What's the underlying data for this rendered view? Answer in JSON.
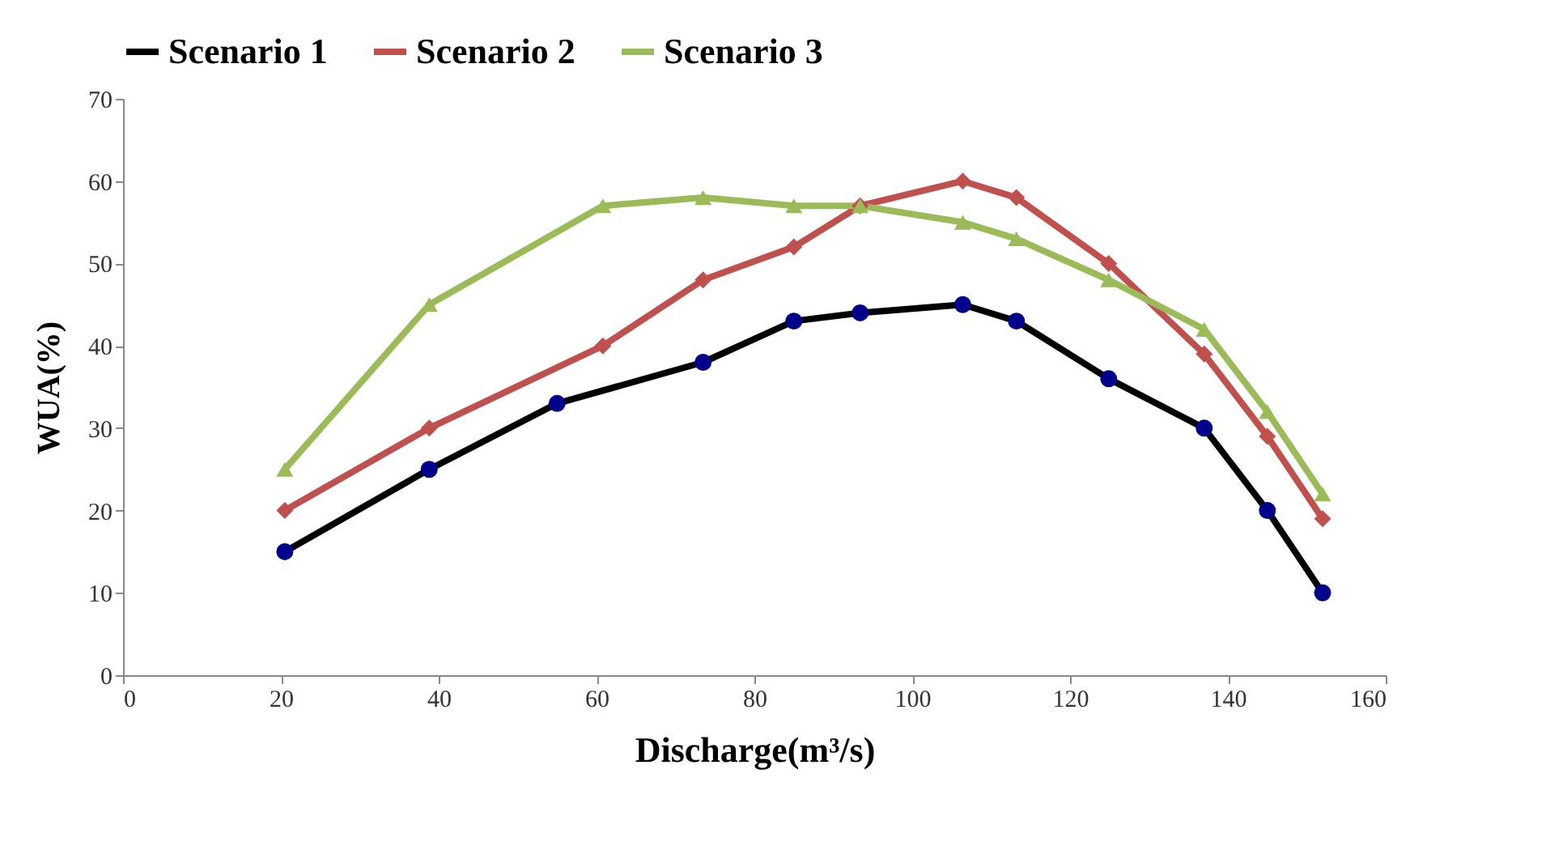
{
  "chart_data": {
    "type": "line",
    "xlabel": "Discharge(m³/s)",
    "ylabel": "WUA(%)",
    "xlim": [
      0,
      160
    ],
    "xticks": [
      0,
      20,
      40,
      60,
      80,
      100,
      120,
      140,
      160
    ],
    "ylim": [
      0,
      70
    ],
    "yticks": [
      0,
      10,
      20,
      30,
      40,
      50,
      60,
      70
    ],
    "grid": false,
    "legend": "top",
    "line_style": "solid",
    "series": [
      {
        "name": "Scenario 1",
        "color": "#000000",
        "marker": "circle",
        "x": [
          20.5,
          38.8,
          55,
          73.5,
          85,
          93.4,
          106.4,
          113.2,
          124.9,
          137,
          145,
          152
        ],
        "values": [
          15,
          25,
          33,
          38,
          43,
          44,
          45,
          43,
          36,
          30,
          20,
          10
        ]
      },
      {
        "name": "Scenario 2",
        "color": "#c0504d",
        "marker": "diamond",
        "x": [
          20.5,
          38.8,
          60.8,
          73.5,
          85,
          93.4,
          106.4,
          113.2,
          124.9,
          137,
          145,
          152
        ],
        "values": [
          20,
          30,
          40,
          48,
          52,
          57,
          60,
          58,
          50,
          39,
          29,
          19
        ]
      },
      {
        "name": "Scenario 3",
        "color": "#9bbb59",
        "marker": "triangle",
        "x": [
          20.5,
          38.8,
          60.8,
          73.5,
          85,
          93.4,
          106.4,
          113.2,
          124.9,
          137,
          145,
          152
        ],
        "values": [
          25,
          45,
          57,
          58,
          57,
          57,
          55,
          53,
          48,
          42,
          32,
          22
        ]
      }
    ]
  }
}
